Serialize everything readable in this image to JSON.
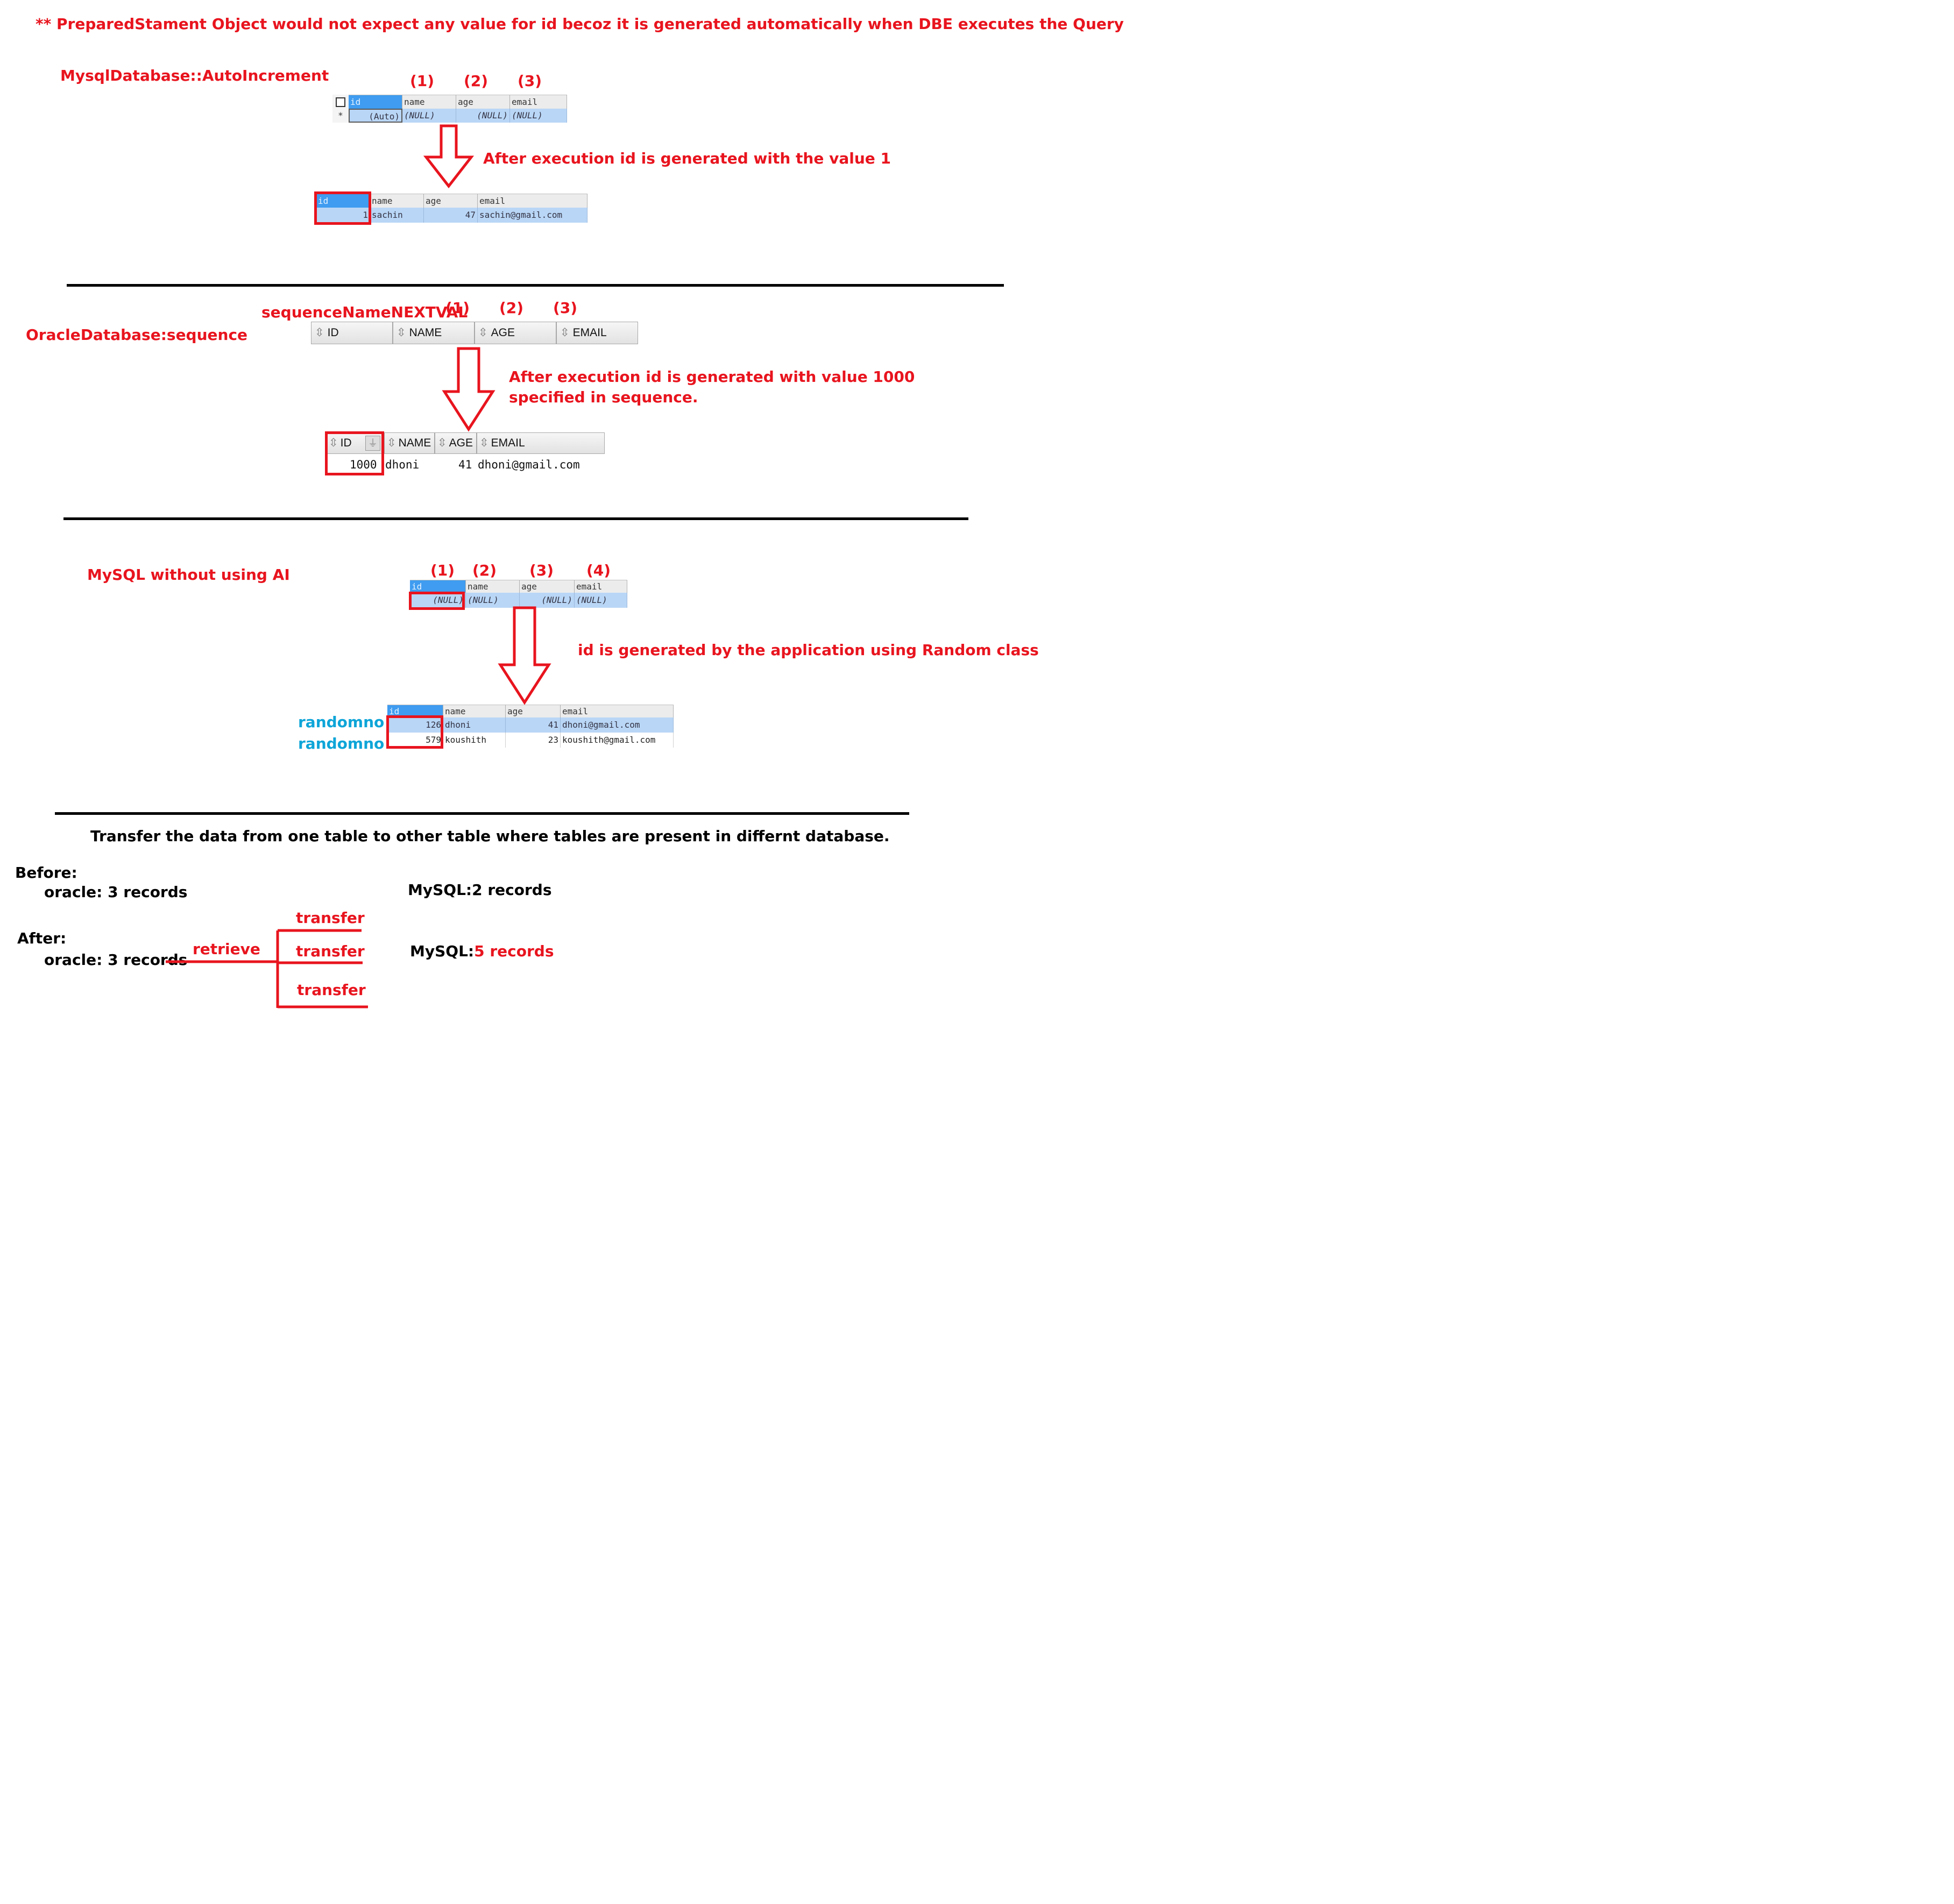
{
  "note": "** PreparedStament Object would not expect any value for id becoz it is generated automatically when DBE executes the Query",
  "section1": {
    "title": "MysqlDatabase::AutoIncrement",
    "markers": [
      "(1)",
      "(2)",
      "(3)"
    ],
    "before_table": {
      "headers": [
        "id",
        "name",
        "age",
        "email"
      ],
      "row_marker": "*",
      "row": [
        "(Auto)",
        "(NULL)",
        "(NULL)",
        "(NULL)"
      ]
    },
    "caption": "After execution id is generated with the value 1",
    "after_table": {
      "headers": [
        "id",
        "name",
        "age",
        "email"
      ],
      "row": [
        "1",
        "sachin",
        "47",
        "sachin@gmail.com"
      ]
    }
  },
  "section2": {
    "title": "OracleDatabase:sequence",
    "seq_label": "sequenceNameNEXTVAL",
    "markers": [
      "(1)",
      "(2)",
      "(3)"
    ],
    "before_headers": [
      "ID",
      "NAME",
      "AGE",
      "EMAIL"
    ],
    "caption_line1": "After execution id is generated with value  1000",
    "caption_line2": "specified   in sequence.",
    "after_headers": [
      "ID",
      "NAME",
      "AGE",
      "EMAIL"
    ],
    "after_row": [
      "1000",
      "dhoni",
      "41",
      "dhoni@gmail.com"
    ]
  },
  "section3": {
    "title": "MySQL without using AI",
    "markers": [
      "(1)",
      "(2)",
      "(3)",
      "(4)"
    ],
    "before_table": {
      "headers": [
        "id",
        "name",
        "age",
        "email"
      ],
      "row": [
        "(NULL)",
        "(NULL)",
        "(NULL)",
        "(NULL)"
      ]
    },
    "caption": "id is generated by the application using Random class",
    "random_labels": [
      "randomno",
      "randomno"
    ],
    "after_table": {
      "headers": [
        "id",
        "name",
        "age",
        "email"
      ],
      "rows": [
        [
          "126",
          "dhoni",
          "41",
          "dhoni@gmail.com"
        ],
        [
          "579",
          "koushith",
          "23",
          "koushith@gmail.com"
        ]
      ]
    }
  },
  "section4": {
    "title": "Transfer the data from one table to other table where tables are present in differnt database.",
    "before_label": "Before:",
    "before_oracle": "oracle: 3 records",
    "before_mysql": "MySQL:2 records",
    "after_label": "After:",
    "after_oracle": "oracle: 3 records",
    "retrieve": "retrieve",
    "transfers": [
      "transfer",
      "transfer",
      "transfer"
    ],
    "after_mysql_prefix": "MySQL:",
    "after_mysql_value": "5 records"
  },
  "colors": {
    "annotation_red": "#e8141e",
    "label_blue": "#0ea5d8",
    "selected_header": "#3f9cf0",
    "selected_row": "#b9d6f6"
  }
}
